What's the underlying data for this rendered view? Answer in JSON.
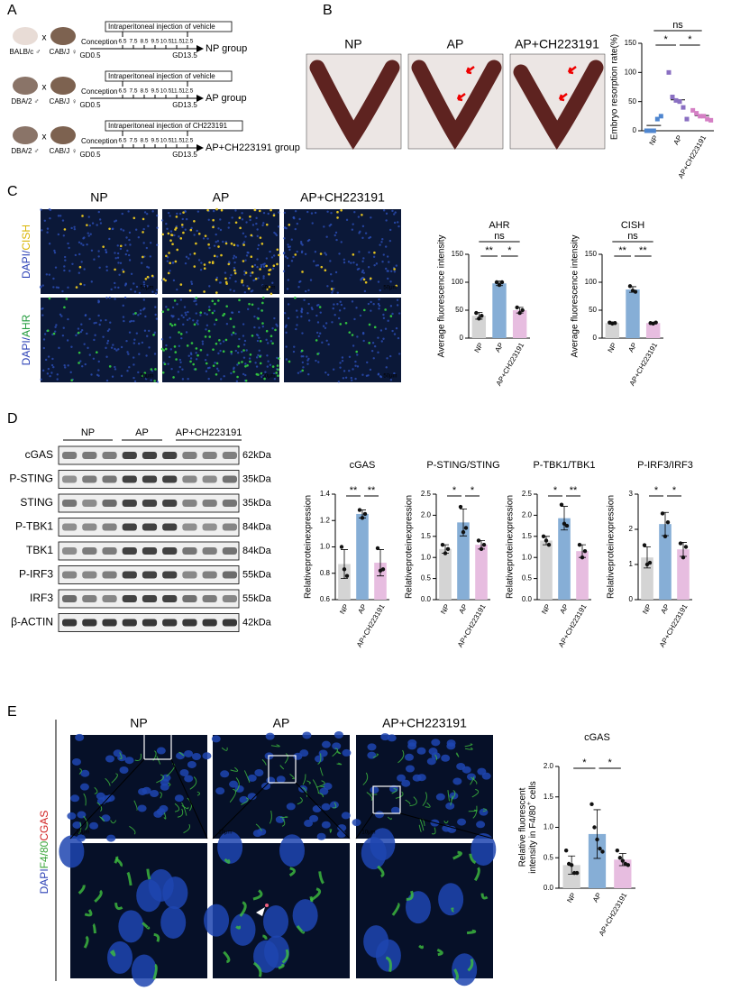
{
  "panel_labels": [
    "A",
    "B",
    "C",
    "D",
    "E"
  ],
  "panel_a": {
    "days": [
      "6.5",
      "7.5",
      "8.5",
      "9.5",
      "10.5",
      "11.5",
      "12.5"
    ],
    "rows": [
      {
        "male": "BALB/c ♂",
        "female": "CAB/J ♀",
        "cross": "x",
        "treatment": "Intraperitoneal injection of vehicle",
        "start": "Conception",
        "group": "NP group",
        "gd_start": "GD0.5",
        "gd_end": "GD13.5"
      },
      {
        "male": "DBA/2 ♂",
        "female": "CAB/J ♀",
        "cross": "x",
        "treatment": "Intraperitoneal injection of vehicle",
        "start": "Conception",
        "group": "AP group",
        "gd_start": "GD0.5",
        "gd_end": "GD13.5"
      },
      {
        "male": "DBA/2 ♂",
        "female": "CAB/J ♀",
        "cross": "x",
        "treatment": "Intraperitoneal injection of CH223191",
        "start": "Conception",
        "group": "AP+CH223191 group",
        "gd_start": "GD0.5",
        "gd_end": "GD13.5"
      }
    ]
  },
  "panel_b": {
    "columns": [
      "NP",
      "AP",
      "AP+CH223191"
    ]
  },
  "panel_c": {
    "columns": [
      "NP",
      "AP",
      "AP+CH223191"
    ],
    "row_labels": [
      {
        "stain": "DAPI/",
        "marker": "CISH"
      },
      {
        "stain": "DAPI/",
        "marker": "AHR"
      }
    ],
    "scale_bar": "50μm"
  },
  "panel_d": {
    "groups": [
      "NP",
      "AP",
      "AP+CH223191"
    ],
    "blots": [
      {
        "protein": "cGAS",
        "size": "62kDa"
      },
      {
        "protein": "P-STING",
        "size": "35kDa"
      },
      {
        "protein": "STING",
        "size": "35kDa"
      },
      {
        "protein": "P-TBK1",
        "size": "84kDa"
      },
      {
        "protein": "TBK1",
        "size": "84kDa"
      },
      {
        "protein": "P-IRF3",
        "size": "55kDa"
      },
      {
        "protein": "IRF3",
        "size": "55kDa"
      },
      {
        "protein": "β-ACTIN",
        "size": "42kDa"
      }
    ]
  },
  "panel_e": {
    "columns": [
      "NP",
      "AP",
      "AP+CH223191"
    ],
    "stains": [
      "DAPI",
      "F4/80",
      "CGAS"
    ],
    "scale_bar": "10μm"
  },
  "chart_data": [
    {
      "type": "dot",
      "ylabel": "Embryo resorption rate(%)",
      "categories": [
        "NP",
        "AP",
        "AP+CH223191"
      ],
      "colors": [
        "#4f86cf",
        "#8a6fc2",
        "#d47fc4"
      ],
      "values": [
        9,
        53,
        26
      ],
      "points": [
        [
          0,
          0,
          0,
          20,
          25
        ],
        [
          100,
          58,
          52,
          50,
          40,
          20
        ],
        [
          35,
          30,
          25,
          25,
          20,
          18
        ]
      ],
      "ylim": [
        0,
        150
      ],
      "yticks": [
        0,
        50,
        100,
        150
      ],
      "comparisons": [
        {
          "groups": [
            "NP",
            "AP"
          ],
          "label": "*"
        },
        {
          "groups": [
            "AP",
            "AP+CH223191"
          ],
          "label": "*"
        },
        {
          "groups": [
            "NP",
            "AP+CH223191"
          ],
          "label": "ns"
        }
      ]
    },
    {
      "type": "bar",
      "title": "AHR",
      "ylabel": "Average fluorescence intensity",
      "categories": [
        "NP",
        "AP",
        "AP+CH223191"
      ],
      "colors": [
        "#d4d4d4",
        "#86aed6",
        "#e7bde0"
      ],
      "values": [
        40,
        98,
        50
      ],
      "errors": [
        6,
        4,
        5
      ],
      "points": [
        [
          45,
          35,
          40
        ],
        [
          100,
          95,
          100
        ],
        [
          55,
          45,
          50
        ]
      ],
      "ylim": [
        0,
        150
      ],
      "yticks": [
        0,
        50,
        100,
        150
      ],
      "comparisons": [
        {
          "groups": [
            "NP",
            "AP"
          ],
          "label": "**"
        },
        {
          "groups": [
            "AP",
            "AP+CH223191"
          ],
          "label": "*"
        },
        {
          "groups": [
            "NP",
            "AP+CH223191"
          ],
          "label": "ns"
        }
      ]
    },
    {
      "type": "bar",
      "title": "CISH",
      "ylabel": "Average fluorescence intensity",
      "categories": [
        "NP",
        "AP",
        "AP+CH223191"
      ],
      "colors": [
        "#d4d4d4",
        "#86aed6",
        "#e7bde0"
      ],
      "values": [
        27,
        87,
        27
      ],
      "errors": [
        2,
        5,
        1
      ],
      "points": [
        [
          28,
          26,
          27
        ],
        [
          93,
          85,
          83
        ],
        [
          27,
          26,
          28
        ]
      ],
      "ylim": [
        0,
        150
      ],
      "yticks": [
        0,
        50,
        100,
        150
      ],
      "comparisons": [
        {
          "groups": [
            "NP",
            "AP"
          ],
          "label": "**"
        },
        {
          "groups": [
            "AP",
            "AP+CH223191"
          ],
          "label": "**"
        },
        {
          "groups": [
            "NP",
            "AP+CH223191"
          ],
          "label": "ns"
        }
      ]
    },
    {
      "type": "bar",
      "title": "cGAS",
      "ylabel": "Relativeproteinexpression",
      "categories": [
        "NP",
        "AP",
        "AP+CH223191"
      ],
      "colors": [
        "#d4d4d4",
        "#86aed6",
        "#e7bde0"
      ],
      "values": [
        0.87,
        1.25,
        0.88
      ],
      "errors": [
        0.11,
        0.03,
        0.1
      ],
      "points": [
        [
          1.0,
          0.83,
          0.78
        ],
        [
          1.28,
          1.22,
          1.25
        ],
        [
          0.99,
          0.82,
          0.83
        ]
      ],
      "ylim": [
        0.6,
        1.4
      ],
      "yticks": [
        0.6,
        0.8,
        {
          "value": 1,
          "label": "1.0"
        },
        1.2,
        1.4
      ],
      "comparisons": [
        {
          "groups": [
            "NP",
            "AP"
          ],
          "label": "**"
        },
        {
          "groups": [
            "AP",
            "AP+CH223191"
          ],
          "label": "**"
        }
      ]
    },
    {
      "type": "bar",
      "title": "P-STING/STING",
      "ylabel": "Relativeproteinexpression",
      "categories": [
        "NP",
        "AP",
        "AP+CH223191"
      ],
      "colors": [
        "#d4d4d4",
        "#86aed6",
        "#e7bde0"
      ],
      "values": [
        1.2,
        1.83,
        1.3
      ],
      "errors": [
        0.1,
        0.32,
        0.1
      ],
      "points": [
        [
          1.3,
          1.1,
          1.2
        ],
        [
          2.2,
          1.6,
          1.7
        ],
        [
          1.4,
          1.2,
          1.3
        ]
      ],
      "ylim": [
        0,
        2.5
      ],
      "yticks": [
        {
          "value": 0,
          "label": "0.0"
        },
        0.5,
        {
          "value": 1,
          "label": "1.0"
        },
        1.5,
        {
          "value": 2,
          "label": "2.0"
        },
        2.5
      ],
      "comparisons": [
        {
          "groups": [
            "NP",
            "AP"
          ],
          "label": "*"
        },
        {
          "groups": [
            "AP",
            "AP+CH223191"
          ],
          "label": "*"
        }
      ]
    },
    {
      "type": "bar",
      "title": "P-TBK1/TBK1",
      "ylabel": "Relativeproteinexpression",
      "categories": [
        "NP",
        "AP",
        "AP+CH223191"
      ],
      "colors": [
        "#d4d4d4",
        "#86aed6",
        "#e7bde0"
      ],
      "values": [
        1.4,
        1.93,
        1.15
      ],
      "errors": [
        0.1,
        0.28,
        0.15
      ],
      "points": [
        [
          1.5,
          1.4,
          1.3
        ],
        [
          2.25,
          1.8,
          1.75
        ],
        [
          1.3,
          1.0,
          1.15
        ]
      ],
      "ylim": [
        0,
        2.5
      ],
      "yticks": [
        {
          "value": 0,
          "label": "0.0"
        },
        0.5,
        {
          "value": 1,
          "label": "1.0"
        },
        1.5,
        {
          "value": 2,
          "label": "2.0"
        },
        2.5
      ],
      "comparisons": [
        {
          "groups": [
            "NP",
            "AP"
          ],
          "label": "*"
        },
        {
          "groups": [
            "AP",
            "AP+CH223191"
          ],
          "label": "**"
        }
      ]
    },
    {
      "type": "bar",
      "title": "P-IRF3/IRF3",
      "ylabel": "Relativeproteinexpression",
      "categories": [
        "NP",
        "AP",
        "AP+CH223191"
      ],
      "colors": [
        "#d4d4d4",
        "#86aed6",
        "#e7bde0"
      ],
      "values": [
        1.2,
        2.15,
        1.43
      ],
      "errors": [
        0.3,
        0.33,
        0.2
      ],
      "points": [
        [
          1.55,
          1.0,
          1.05
        ],
        [
          2.45,
          1.8,
          2.2
        ],
        [
          1.6,
          1.2,
          1.5
        ]
      ],
      "ylim": [
        0,
        3
      ],
      "yticks": [
        0,
        1,
        2,
        3
      ],
      "comparisons": [
        {
          "groups": [
            "NP",
            "AP"
          ],
          "label": "*"
        },
        {
          "groups": [
            "AP",
            "AP+CH223191"
          ],
          "label": "*"
        }
      ]
    },
    {
      "type": "bar",
      "title": "cGAS",
      "ylabel": "Relative fluorescent",
      "ylabel2": [
        "intensity in F4/80",
        "+",
        " cells"
      ],
      "categories": [
        "NP",
        "AP",
        "AP+CH223191"
      ],
      "colors": [
        "#d4d4d4",
        "#86aed6",
        "#e7bde0"
      ],
      "values": [
        0.38,
        0.89,
        0.47
      ],
      "errors": [
        0.15,
        0.4,
        0.1
      ],
      "points": [
        [
          0.62,
          0.4,
          0.38,
          0.25,
          0.25
        ],
        [
          1.38,
          1.0,
          0.8,
          0.65,
          0.6
        ],
        [
          0.62,
          0.5,
          0.45,
          0.4,
          0.38
        ]
      ],
      "ylim": [
        0,
        2
      ],
      "yticks": [
        {
          "value": 0,
          "label": "0.0"
        },
        0.5,
        {
          "value": 1,
          "label": "1.0"
        },
        1.5,
        {
          "value": 2,
          "label": "2.0"
        }
      ],
      "comparisons": [
        {
          "groups": [
            "NP",
            "AP"
          ],
          "label": "*"
        },
        {
          "groups": [
            "AP",
            "AP+CH223191"
          ],
          "label": "*"
        }
      ]
    }
  ]
}
